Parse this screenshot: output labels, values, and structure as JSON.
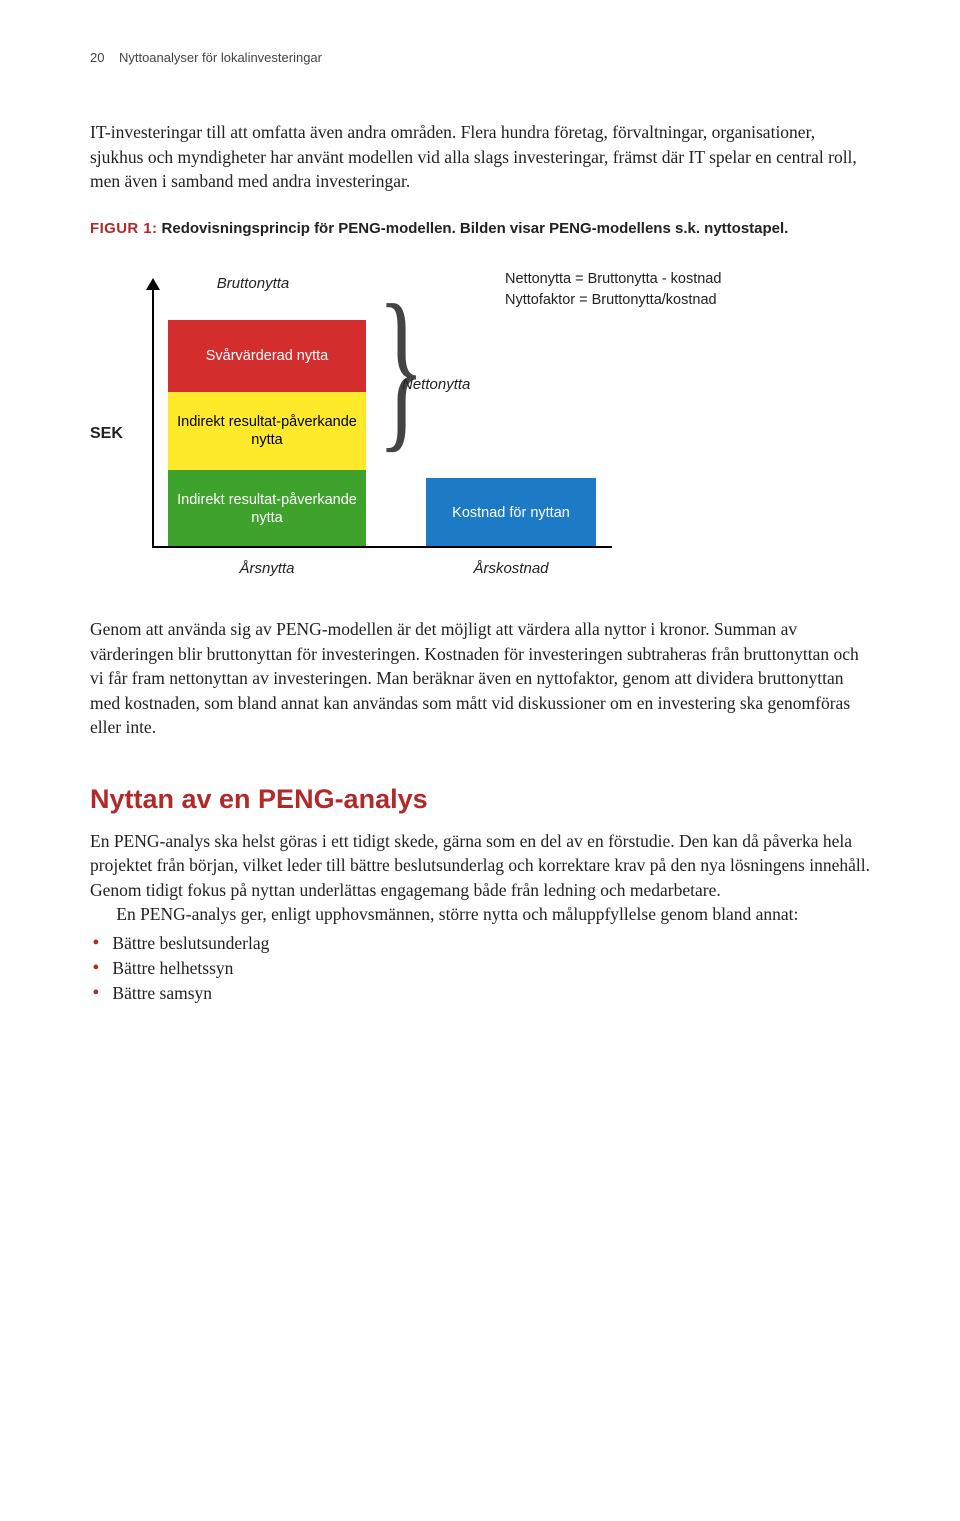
{
  "header": {
    "page_number": "20",
    "running_title": "Nyttoanalyser för lokalinvesteringar"
  },
  "intro_para": "IT-investeringar till att omfatta även andra områden. Flera hundra företag, förvaltningar, organisationer, sjukhus och myndigheter har använt modellen vid alla slags investeringar, främst där IT spelar en central roll, men även i samband med andra investeringar.",
  "figure_caption": {
    "prefix": "figur 1:",
    "text": "Redovisningsprincip för PENG-modellen. Bilden visar PENG-modellens s.k. nyttostapel."
  },
  "colors": {
    "accent": "#b02a2a",
    "red": "#d32d2d",
    "yellow": "#ffe92b",
    "green": "#3fa22d",
    "blue": "#1c7bc4",
    "black": "#000000"
  },
  "figure": {
    "bruttonytta_label": "Bruttonytta",
    "eq1": "Nettonytta = Bruttonytta - kostnad",
    "eq2": "Nyttofaktor = Bruttonytta/kostnad",
    "sek_label": "SEK",
    "bar1_label": "Svårvärderad nytta",
    "bar2_label": "Indirekt resultat-påverkande nytta",
    "bar3_label": "Indirekt resultat-påverkande nytta",
    "nettonytta_label": "Nettonytta",
    "cost_label": "Kostnad för nyttan",
    "axis_label_left": "Årsnytta",
    "axis_label_right": "Årskostnad",
    "bar_heights": {
      "red": 72,
      "yellow": 78,
      "green": 78
    },
    "cost_height": 70
  },
  "para_after_figure": "Genom att använda sig av PENG-modellen är det möjligt att värdera alla nyttor i kronor. Summan av värderingen blir bruttonyttan för investeringen. Kostnaden för investeringen subtraheras från bruttonyttan och vi får fram nettonyttan av investeringen. Man beräknar även en nyttofaktor, genom att dividera bruttonyttan med kostnaden, som bland annat kan användas som mått vid diskussioner om en investering ska genomföras eller inte.",
  "section2": {
    "title": "Nyttan av en PENG-analys",
    "title_fontsize": 27,
    "title_color": "#b02a2a",
    "para1": "En PENG-analys ska helst göras i ett tidigt skede, gärna som en del av en förstudie. Den kan då påverka hela projektet från början, vilket leder till bättre beslutsunderlag och korrektare krav på den nya lösningens innehåll. Genom tidigt fokus på nyttan underlättas engagemang både från ledning och medarbetare.",
    "para2": "En PENG-analys ger, enligt upphovsmännen, större nytta och måluppfyllelse genom bland annat:",
    "bullets": [
      "Bättre beslutsunderlag",
      "Bättre helhetssyn",
      "Bättre samsyn"
    ]
  }
}
